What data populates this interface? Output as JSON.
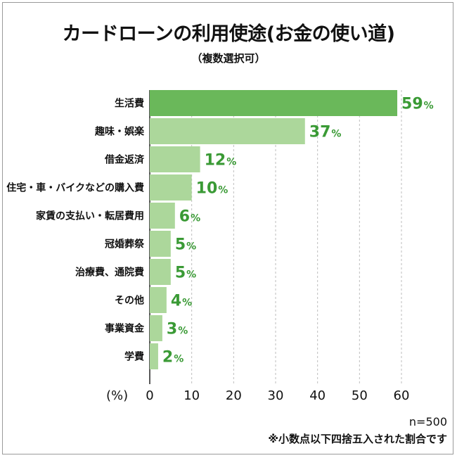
{
  "chart_data": {
    "type": "bar",
    "orientation": "horizontal",
    "title": "カードローンの利用使途(お金の使い道)",
    "subtitle": "（複数選択可）",
    "categories": [
      "生活費",
      "趣味・娯楽",
      "借金返済",
      "住宅・車・バイクなどの購入費",
      "家賃の支払い・転居費用",
      "冠婚葬祭",
      "治療費、通院費",
      "その他",
      "事業資金",
      "学費"
    ],
    "values": [
      59,
      37,
      12,
      10,
      6,
      5,
      5,
      4,
      3,
      2
    ],
    "value_suffix": "%",
    "xlabel": "(%)",
    "xlim": [
      0,
      60
    ],
    "xticks": [
      0,
      10,
      20,
      30,
      40,
      50,
      60
    ],
    "grid": true,
    "colors": {
      "highlight_bar": "#6ab85a",
      "bar": "#acd79b",
      "value_text": "#3a9a35",
      "grid": "#bdbdbd"
    }
  },
  "footer": {
    "sample_size": "n=500",
    "note": "※小数点以下四捨五入された割合です"
  }
}
